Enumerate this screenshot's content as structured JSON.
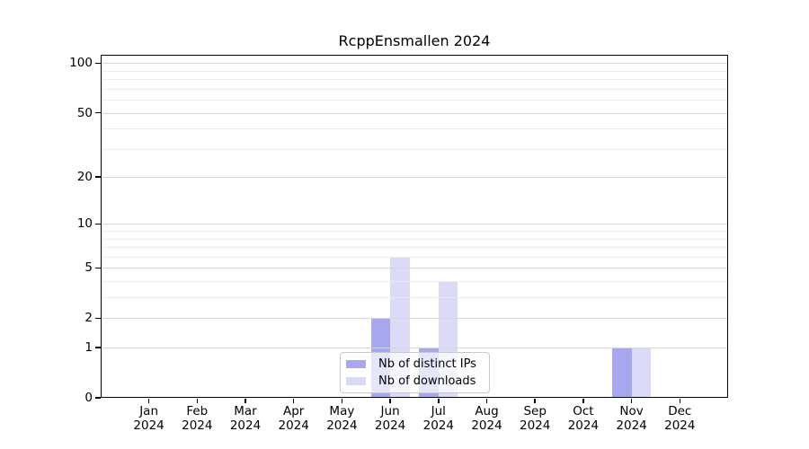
{
  "chart_data": {
    "type": "bar",
    "title": "RcppEnsmallen 2024",
    "scale": "log1p",
    "categories": [
      "Jan",
      "Feb",
      "Mar",
      "Apr",
      "May",
      "Jun",
      "Jul",
      "Aug",
      "Sep",
      "Oct",
      "Nov",
      "Dec"
    ],
    "year_label": "2024",
    "series": [
      {
        "name": "Nb of distinct IPs",
        "color": "#a7a7f0",
        "values": [
          0,
          0,
          0,
          0,
          0,
          2,
          1,
          0,
          0,
          0,
          1,
          0
        ]
      },
      {
        "name": "Nb of downloads",
        "color": "#dbdbf8",
        "values": [
          0,
          0,
          0,
          0,
          0,
          6,
          4,
          0,
          0,
          0,
          1,
          0
        ]
      }
    ],
    "yticks": [
      0,
      1,
      2,
      5,
      10,
      20,
      50,
      100
    ],
    "minor_grid_values": [
      3,
      4,
      6,
      7,
      8,
      9,
      30,
      40,
      60,
      70,
      80,
      90
    ],
    "ylim": [
      0,
      112.5
    ],
    "grid": true,
    "legend_position": "bottom-center",
    "colors": {
      "major_grid": "#d6d6d6",
      "minor_grid": "#ededed",
      "axis": "#000000",
      "background": "#ffffff"
    }
  }
}
